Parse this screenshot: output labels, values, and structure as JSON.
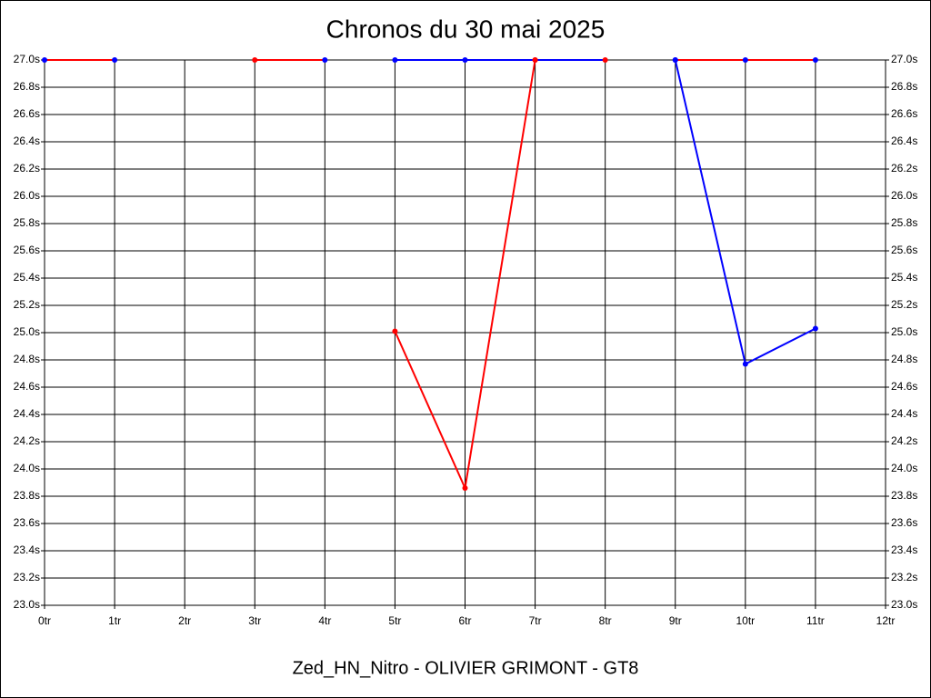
{
  "chart_data": {
    "type": "line",
    "title": "Chronos du 30 mai 2025",
    "subtitle": "Zed_HN_Nitro - OLIVIER GRIMONT - GT8",
    "xlim": [
      0,
      12
    ],
    "xticks": [
      {
        "value": 0,
        "label": "0tr"
      },
      {
        "value": 1,
        "label": "1tr"
      },
      {
        "value": 2,
        "label": "2tr"
      },
      {
        "value": 3,
        "label": "3tr"
      },
      {
        "value": 4,
        "label": "4tr"
      },
      {
        "value": 5,
        "label": "5tr"
      },
      {
        "value": 6,
        "label": "6tr"
      },
      {
        "value": 7,
        "label": "7tr"
      },
      {
        "value": 8,
        "label": "8tr"
      },
      {
        "value": 9,
        "label": "9tr"
      },
      {
        "value": 10,
        "label": "10tr"
      },
      {
        "value": 11,
        "label": "11tr"
      },
      {
        "value": 12,
        "label": "12tr"
      }
    ],
    "ylim": [
      23,
      27
    ],
    "yticks": [
      {
        "value": 23,
        "label": "23.0s"
      },
      {
        "value": 23.2,
        "label": "23.2s"
      },
      {
        "value": 23.4,
        "label": "23.4s"
      },
      {
        "value": 23.6,
        "label": "23.6s"
      },
      {
        "value": 23.8,
        "label": "23.8s"
      },
      {
        "value": 24,
        "label": "24.0s"
      },
      {
        "value": 24.2,
        "label": "24.2s"
      },
      {
        "value": 24.4,
        "label": "24.4s"
      },
      {
        "value": 24.6,
        "label": "24.6s"
      },
      {
        "value": 24.8,
        "label": "24.8s"
      },
      {
        "value": 25,
        "label": "25.0s"
      },
      {
        "value": 25.2,
        "label": "25.2s"
      },
      {
        "value": 25.4,
        "label": "25.4s"
      },
      {
        "value": 25.6,
        "label": "25.6s"
      },
      {
        "value": 25.8,
        "label": "25.8s"
      },
      {
        "value": 26,
        "label": "26.0s"
      },
      {
        "value": 26.2,
        "label": "26.2s"
      },
      {
        "value": 26.4,
        "label": "26.4s"
      },
      {
        "value": 26.6,
        "label": "26.6s"
      },
      {
        "value": 26.8,
        "label": "26.8s"
      },
      {
        "value": 27,
        "label": "27.0s"
      }
    ],
    "grid": true,
    "series": [
      {
        "color": "#ff0000",
        "x": [
          0,
          1
        ],
        "values": [
          27,
          27
        ],
        "marker_colors": [
          "#0000ff",
          "#0000ff"
        ]
      },
      {
        "color": "#ff0000",
        "x": [
          3,
          4
        ],
        "values": [
          27,
          27
        ],
        "marker_colors": [
          "#ff0000",
          "#0000ff"
        ]
      },
      {
        "color": "#0000ff",
        "x": [
          5,
          6,
          7,
          8
        ],
        "values": [
          27,
          27,
          27,
          27
        ],
        "marker_colors": [
          "#0000ff",
          "#0000ff",
          "#ff0000",
          "#ff0000"
        ]
      },
      {
        "color": "#ff0000",
        "x": [
          5,
          6,
          7
        ],
        "values": [
          25.01,
          23.86,
          27
        ],
        "marker_colors": [
          "#ff0000",
          "#ff0000",
          "#ff0000"
        ]
      },
      {
        "color": "#ff0000",
        "x": [
          9,
          10,
          11
        ],
        "values": [
          27,
          27,
          27
        ],
        "marker_colors": [
          "#0000ff",
          "#0000ff",
          "#0000ff"
        ]
      },
      {
        "color": "#0000ff",
        "x": [
          9,
          10,
          11
        ],
        "values": [
          27,
          24.77,
          25.03
        ],
        "marker_colors": [
          "#0000ff",
          "#0000ff",
          "#0000ff"
        ]
      }
    ]
  }
}
